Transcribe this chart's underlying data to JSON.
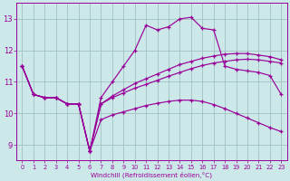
{
  "bg_color": "#cce8e8",
  "line_color": "#990099",
  "grid_color": "#99bbbb",
  "xlabel": "Windchill (Refroidissement éolien,°C)",
  "ylim": [
    8.5,
    13.5
  ],
  "xlim": [
    -0.5,
    23.5
  ],
  "yticks": [
    9,
    10,
    11,
    12,
    13
  ],
  "xticks": [
    0,
    1,
    2,
    3,
    4,
    5,
    6,
    7,
    8,
    9,
    10,
    11,
    12,
    13,
    14,
    15,
    16,
    17,
    18,
    19,
    20,
    21,
    22,
    23
  ],
  "line_spike": [
    11.5,
    10.6,
    10.5,
    10.5,
    10.3,
    10.3,
    8.8,
    10.5,
    11.0,
    11.5,
    12.0,
    12.8,
    12.65,
    12.75,
    13.0,
    13.05,
    12.7,
    12.65,
    11.5,
    11.4,
    11.35,
    11.3,
    11.2,
    10.6
  ],
  "line_upper": [
    11.5,
    10.6,
    10.5,
    10.5,
    10.3,
    10.3,
    8.8,
    10.3,
    10.55,
    10.75,
    10.95,
    11.1,
    11.25,
    11.4,
    11.55,
    11.65,
    11.75,
    11.82,
    11.88,
    11.9,
    11.9,
    11.85,
    11.8,
    11.7
  ],
  "line_mid": [
    11.5,
    10.6,
    10.5,
    10.5,
    10.3,
    10.3,
    8.8,
    10.3,
    10.5,
    10.65,
    10.8,
    10.92,
    11.05,
    11.18,
    11.3,
    11.42,
    11.52,
    11.6,
    11.65,
    11.7,
    11.72,
    11.7,
    11.65,
    11.6
  ],
  "line_low": [
    11.5,
    10.6,
    10.5,
    10.5,
    10.3,
    10.3,
    8.8,
    9.8,
    9.95,
    10.05,
    10.15,
    10.25,
    10.32,
    10.38,
    10.42,
    10.42,
    10.38,
    10.28,
    10.15,
    10.0,
    9.85,
    9.7,
    9.55,
    9.42
  ]
}
